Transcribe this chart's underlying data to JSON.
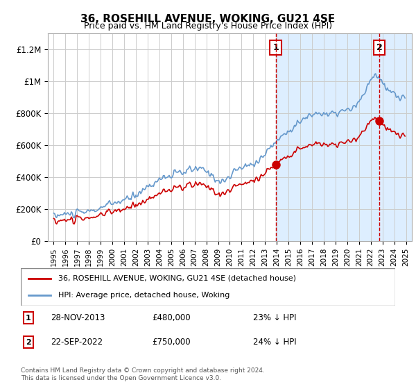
{
  "title": "36, ROSEHILL AVENUE, WOKING, GU21 4SE",
  "subtitle": "Price paid vs. HM Land Registry's House Price Index (HPI)",
  "legend_line1": "36, ROSEHILL AVENUE, WOKING, GU21 4SE (detached house)",
  "legend_line2": "HPI: Average price, detached house, Woking",
  "transaction1_date": "28-NOV-2013",
  "transaction1_price": 480000,
  "transaction1_pct": "23% ↓ HPI",
  "transaction2_date": "22-SEP-2022",
  "transaction2_price": 750000,
  "transaction2_pct": "24% ↓ HPI",
  "footnote": "Contains HM Land Registry data © Crown copyright and database right 2024.\nThis data is licensed under the Open Government Licence v3.0.",
  "hpi_color": "#6699cc",
  "price_color": "#cc0000",
  "vline_color": "#cc0000",
  "shade_color": "#ddeeff",
  "transaction1_x": 2013.9,
  "transaction2_x": 2022.72,
  "ylim_max": 1300000,
  "xlim_min": 1994.5,
  "xlim_max": 2025.5
}
